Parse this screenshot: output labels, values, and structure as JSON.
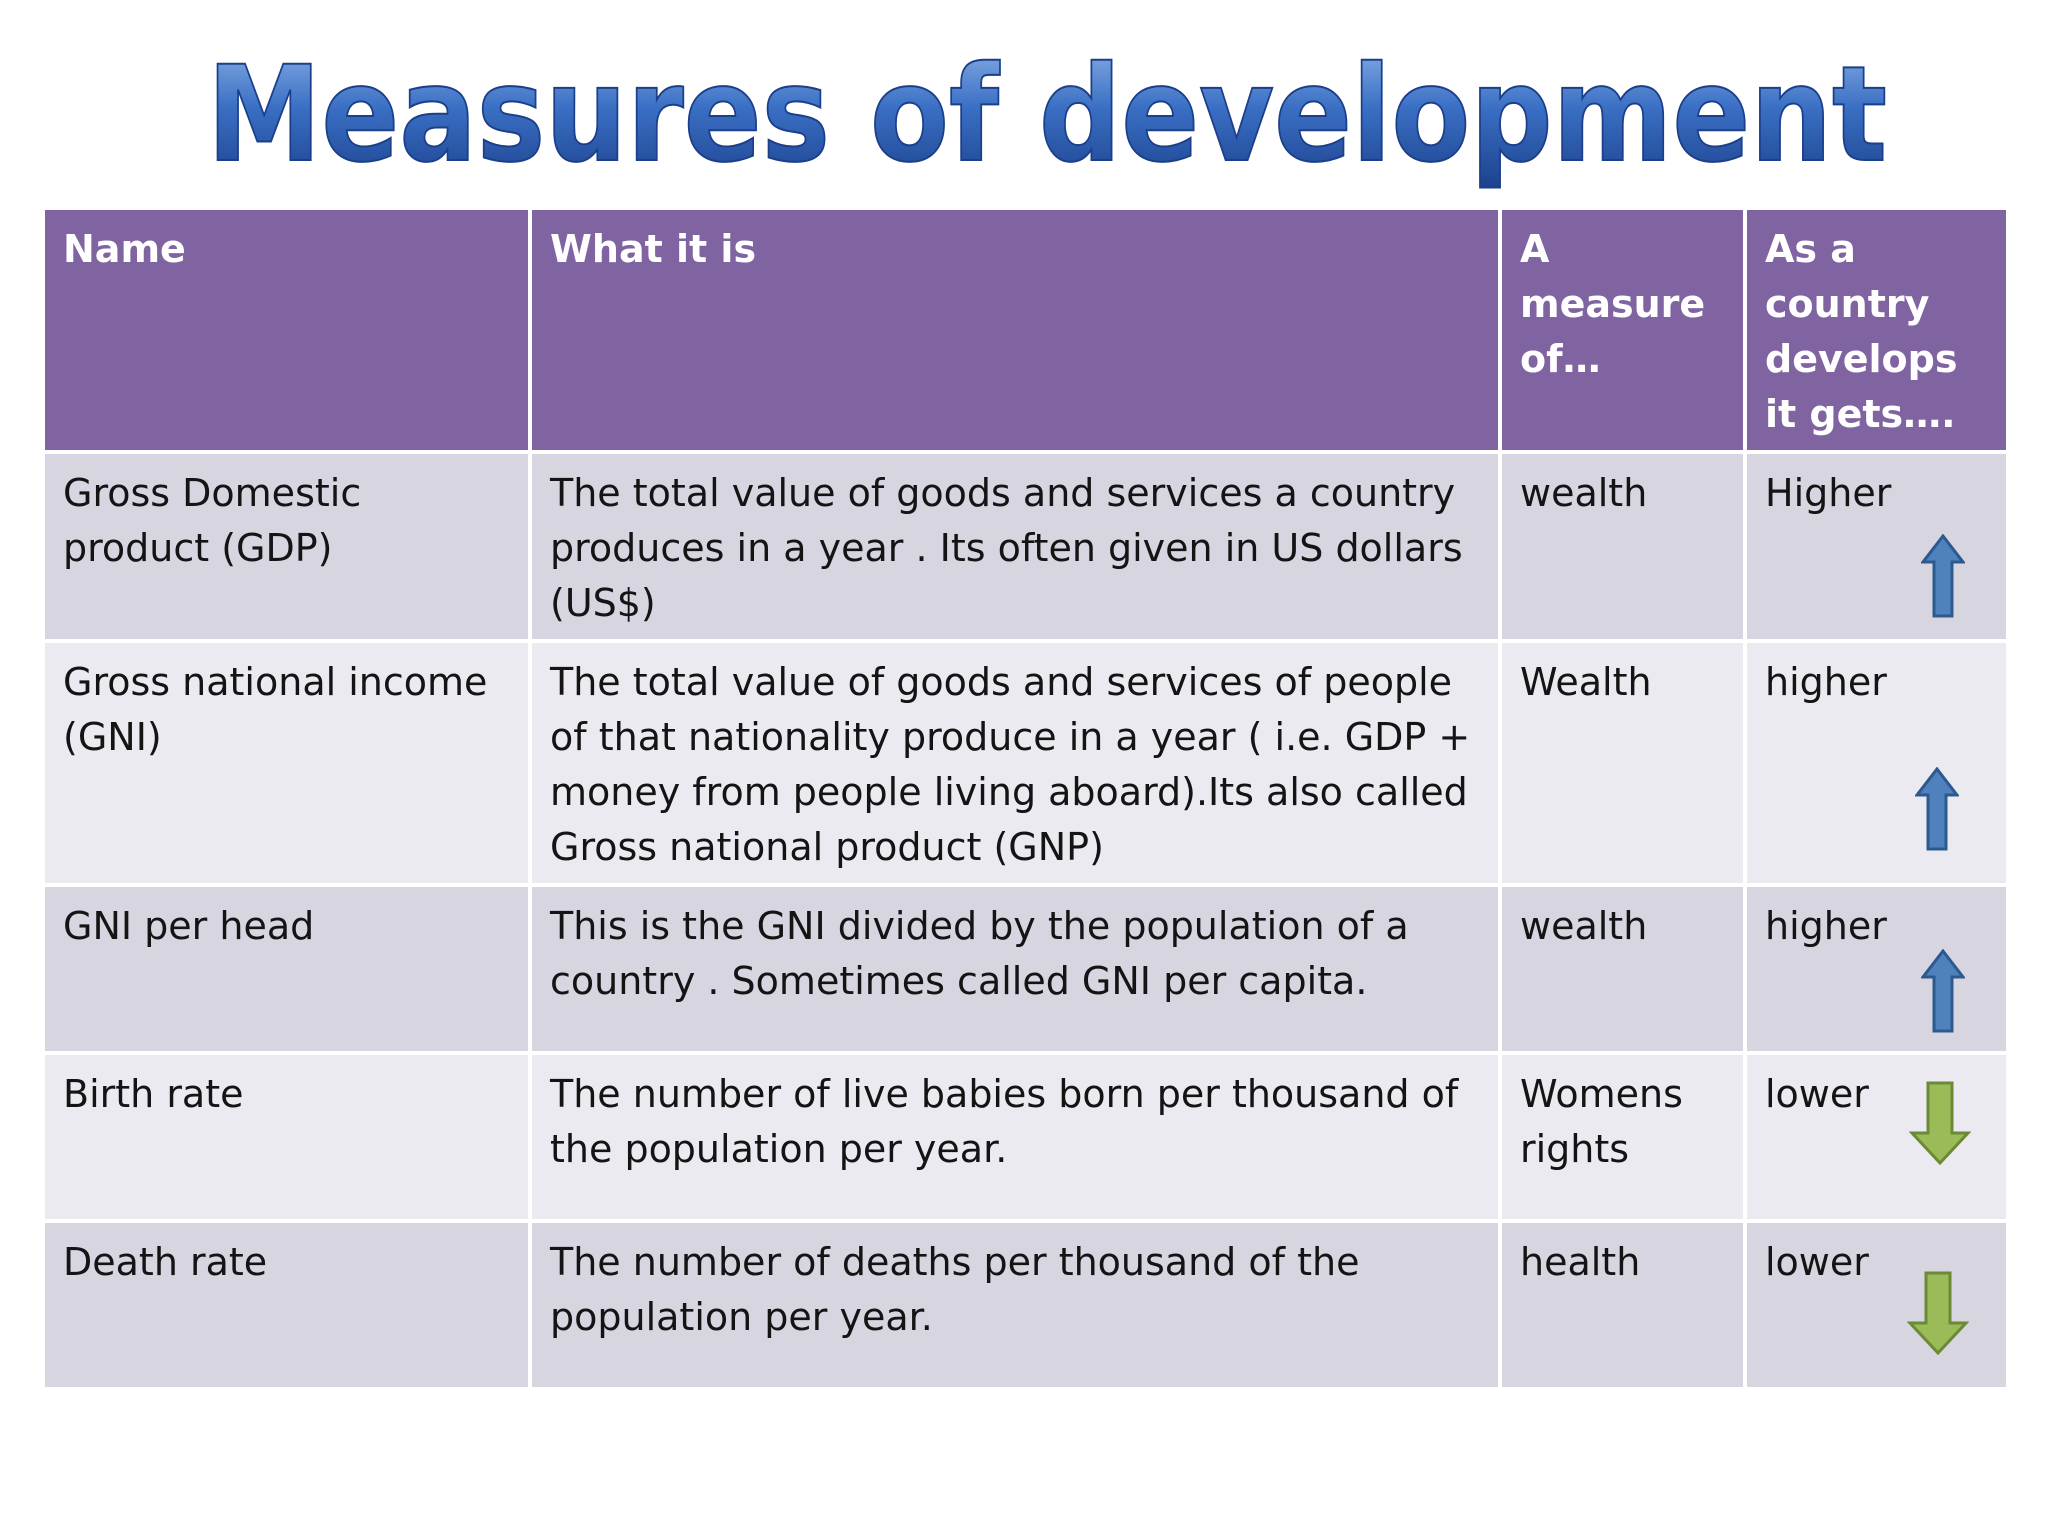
{
  "title": "Measures of development",
  "colors": {
    "header_bg": "#8064a2",
    "row_dark": "#d6d5e0",
    "row_light": "#ebeaf0",
    "title_blue": "#1f4e9c",
    "arrow_up": "#4f81bd",
    "arrow_down": "#9bbb59"
  },
  "table": {
    "headers": {
      "name": "Name",
      "what": "What it is",
      "measure": "A measure of…",
      "trend": "As a country develops it gets…."
    },
    "rows": [
      {
        "name": "Gross Domestic product (GDP)",
        "what": "The total value of goods and services a country produces in a year . Its often given in US dollars (US$)",
        "measure": "wealth",
        "trend": "Higher",
        "arrow": "arrow-up-icon"
      },
      {
        "name": "Gross national income (GNI)",
        "what": "The total value of goods and services of people of that nationality produce in a year ( i.e. GDP + money from people living aboard).Its also called Gross national product (GNP)",
        "measure": "Wealth",
        "trend": "higher",
        "arrow": "arrow-up-icon"
      },
      {
        "name": "GNI per head",
        "what": "This is the GNI divided by the population of a country . Sometimes called GNI per capita.",
        "measure": "wealth",
        "trend": "higher",
        "arrow": "arrow-up-icon"
      },
      {
        "name": "Birth rate",
        "what": "The number of live babies born per thousand of the population per year.",
        "measure": "Womens rights",
        "trend": "lower",
        "arrow": "arrow-down-icon"
      },
      {
        "name": "Death rate",
        "what": "The number of deaths per thousand of the population per year.",
        "measure": "health",
        "trend": "lower",
        "arrow": "arrow-down-icon"
      }
    ]
  }
}
